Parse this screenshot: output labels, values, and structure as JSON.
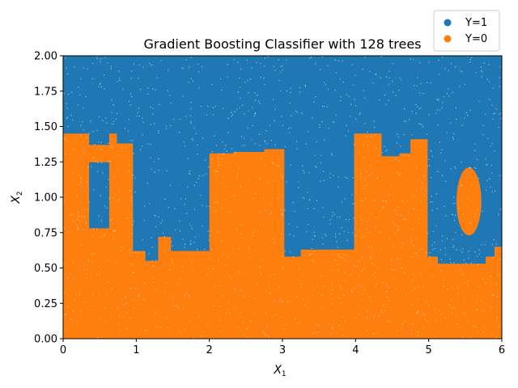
{
  "chart_data": {
    "type": "scatter",
    "title": "Gradient Boosting Classifier with 128 trees",
    "xlabel": "X",
    "xlabel_sub": "1",
    "ylabel": "X",
    "ylabel_sub": "2",
    "xlim": [
      0,
      6
    ],
    "ylim": [
      0,
      2
    ],
    "x_ticks": [
      {
        "value": 0,
        "label": "0"
      },
      {
        "value": 1,
        "label": "1"
      },
      {
        "value": 2,
        "label": "2"
      },
      {
        "value": 3,
        "label": "3"
      },
      {
        "value": 4,
        "label": "4"
      },
      {
        "value": 5,
        "label": "5"
      },
      {
        "value": 6,
        "label": "6"
      }
    ],
    "y_ticks": [
      {
        "value": 0.0,
        "label": "0.00"
      },
      {
        "value": 0.25,
        "label": "0.25"
      },
      {
        "value": 0.5,
        "label": "0.50"
      },
      {
        "value": 0.75,
        "label": "0.75"
      },
      {
        "value": 1.0,
        "label": "1.00"
      },
      {
        "value": 1.25,
        "label": "1.25"
      },
      {
        "value": 1.5,
        "label": "1.50"
      },
      {
        "value": 1.75,
        "label": "1.75"
      },
      {
        "value": 2.0,
        "label": "2.00"
      }
    ],
    "grid": false,
    "legend_position": "top-right",
    "series": [
      {
        "name": "Y=1",
        "color": "#1f77b4"
      },
      {
        "name": "Y=0",
        "color": "#ff7f0e"
      }
    ],
    "class0_regions": [
      {
        "x": [
          0,
          6
        ],
        "y": [
          0,
          0.5
        ]
      },
      {
        "x": [
          0,
          0.35
        ],
        "y": [
          0.5,
          1.45
        ]
      },
      {
        "x": [
          0.35,
          0.63
        ],
        "y": [
          0.5,
          0.78
        ]
      },
      {
        "x": [
          0.35,
          0.63
        ],
        "y": [
          1.25,
          1.37
        ]
      },
      {
        "x": [
          0.63,
          0.73
        ],
        "y": [
          0.5,
          1.45
        ]
      },
      {
        "x": [
          0.73,
          0.95
        ],
        "y": [
          0.5,
          1.38
        ]
      },
      {
        "x": [
          0.95,
          1.12
        ],
        "y": [
          0.5,
          0.62
        ]
      },
      {
        "x": [
          1.12,
          1.3
        ],
        "y": [
          0.5,
          0.55
        ]
      },
      {
        "x": [
          1.3,
          1.47
        ],
        "y": [
          0.5,
          0.72
        ]
      },
      {
        "x": [
          1.47,
          2.0
        ],
        "y": [
          0.5,
          0.62
        ]
      },
      {
        "x": [
          2.0,
          2.33
        ],
        "y": [
          0.5,
          1.31
        ]
      },
      {
        "x": [
          2.33,
          2.75
        ],
        "y": [
          0.5,
          1.32
        ]
      },
      {
        "x": [
          2.75,
          3.02
        ],
        "y": [
          0.5,
          1.34
        ]
      },
      {
        "x": [
          3.02,
          3.25
        ],
        "y": [
          0.5,
          0.58
        ]
      },
      {
        "x": [
          3.25,
          3.98
        ],
        "y": [
          0.5,
          0.63
        ]
      },
      {
        "x": [
          3.98,
          4.35
        ],
        "y": [
          0.5,
          1.45
        ]
      },
      {
        "x": [
          4.35,
          4.6
        ],
        "y": [
          0.5,
          1.29
        ]
      },
      {
        "x": [
          4.6,
          4.75
        ],
        "y": [
          0.5,
          1.31
        ]
      },
      {
        "x": [
          4.75,
          4.98
        ],
        "y": [
          0.5,
          1.41
        ]
      },
      {
        "x": [
          4.98,
          5.12
        ],
        "y": [
          0.5,
          0.58
        ]
      },
      {
        "x": [
          5.12,
          5.78
        ],
        "y": [
          0.5,
          0.53
        ]
      },
      {
        "x": [
          5.78,
          5.9
        ],
        "y": [
          0.5,
          0.58
        ]
      },
      {
        "x": [
          5.9,
          6.0
        ],
        "y": [
          0.5,
          0.65
        ]
      }
    ],
    "class0_blobs": [
      {
        "cx": 5.55,
        "cy": 0.97,
        "rx": 0.17,
        "ry": 0.24
      }
    ]
  }
}
